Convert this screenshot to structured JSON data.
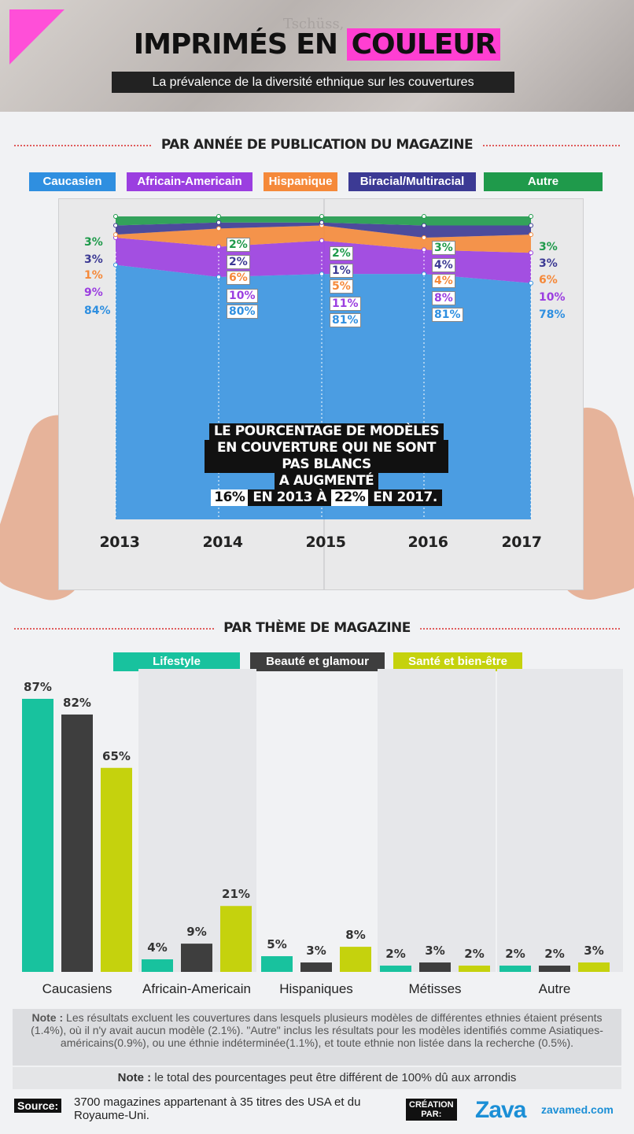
{
  "header": {
    "title_part1": "IMPRIMÉS EN",
    "title_part2": "COULEUR",
    "subtitle": "La prévalence de la diversité ethnique sur les couvertures",
    "background_text": "Tschüss,"
  },
  "section1": {
    "title": "PAR ANNÉE DE PUBLICATION DU MAGAZINE"
  },
  "section2": {
    "title": "PAR THÈME DE MAGAZINE"
  },
  "legend1": [
    {
      "label": "Caucasien",
      "color": "#2f8fe0"
    },
    {
      "label": "Africain-Americain",
      "color": "#9b3ee0"
    },
    {
      "label": "Hispanique",
      "color": "#f5893a"
    },
    {
      "label": "Biracial/Multiracial",
      "color": "#3c3a94"
    },
    {
      "label": "Autre",
      "color": "#1f9a4b"
    }
  ],
  "legend2": [
    {
      "label": "Lifestyle",
      "color": "#18c29e"
    },
    {
      "label": "Beauté et glamour",
      "color": "#3e3e3e"
    },
    {
      "label": "Santé et bien-être",
      "color": "#c5d20d"
    }
  ],
  "annotation": {
    "line1": "LE POURCENTAGE DE MODÈLES",
    "line2": "EN COUVERTURE QUI NE SONT PAS BLANCS",
    "line3": "A AUGMENTÉ",
    "hl1": "16%",
    "mid": "EN 2013 À",
    "hl2": "22%",
    "end": "EN 2017."
  },
  "chart_data": [
    {
      "type": "area",
      "title": "PAR ANNÉE DE PUBLICATION DU MAGAZINE",
      "x": [
        "2013",
        "2014",
        "2015",
        "2016",
        "2017"
      ],
      "stacked": true,
      "series": [
        {
          "name": "Caucasien",
          "values": [
            84,
            80,
            81,
            81,
            78
          ],
          "labels": [
            "84%",
            "80%",
            "81%",
            "81%",
            "78%"
          ],
          "color": "#2f8fe0"
        },
        {
          "name": "Africain-Americain",
          "values": [
            9,
            10,
            11,
            8,
            10
          ],
          "labels": [
            "9%",
            "10%",
            "11%",
            "8%",
            "10%"
          ],
          "color": "#9b3ee0"
        },
        {
          "name": "Hispanique",
          "values": [
            1,
            6,
            5,
            4,
            6
          ],
          "labels": [
            "1%",
            "6%",
            "5%",
            "4%",
            "6%"
          ],
          "color": "#f5893a"
        },
        {
          "name": "Biracial/Multiracial",
          "values": [
            3,
            2,
            1,
            4,
            3
          ],
          "labels": [
            "3%",
            "2%",
            "1%",
            "4%",
            "3%"
          ],
          "color": "#3c3a94"
        },
        {
          "name": "Autre",
          "values": [
            3,
            2,
            2,
            3,
            3
          ],
          "labels": [
            "3%",
            "2%",
            "2%",
            "3%",
            "3%"
          ],
          "color": "#1f9a4b"
        }
      ]
    },
    {
      "type": "bar",
      "title": "PAR THÈME DE MAGAZINE",
      "categories": [
        "Caucasiens",
        "Africain-Americain",
        "Hispaniques",
        "Métisses",
        "Autre"
      ],
      "ylim": [
        0,
        100
      ],
      "series": [
        {
          "name": "Lifestyle",
          "values": [
            87,
            4,
            5,
            2,
            2
          ],
          "labels": [
            "87%",
            "4%",
            "5%",
            "2%",
            "2%"
          ],
          "color": "#18c29e"
        },
        {
          "name": "Beauté et glamour",
          "values": [
            82,
            9,
            3,
            3,
            2
          ],
          "labels": [
            "82%",
            "9%",
            "3%",
            "3%",
            "2%"
          ],
          "color": "#3e3e3e"
        },
        {
          "name": "Santé et bien-être",
          "values": [
            65,
            21,
            8,
            2,
            3
          ],
          "labels": [
            "65%",
            "21%",
            "8%",
            "2%",
            "3%"
          ],
          "color": "#c5d20d"
        }
      ]
    }
  ],
  "footer": {
    "note1_label": "Note :",
    "note1_text": "Les résultats excluent les couvertures dans lesquels plusieurs modèles de différentes ethnies étaient présents (1.4%), où il n'y avait aucun modèle (2.1%). \"Autre\" inclus les résultats pour les modèles identifiés comme Asiatiques-américains(0.9%), ou une éthnie indéterminée(1.1%), et toute ethnie non listée dans la recherche (0.5%).",
    "note2_label": "Note :",
    "note2_text": "le total des pourcentages peut être différent de 100% dû aux arrondis",
    "source_label": "Source:",
    "source_text": "3700 magazines appartenant à 35 titres des USA et du Royaume-Uni.",
    "creation_line1": "CRÉATION",
    "creation_line2": "PAR:",
    "brand": "Zava",
    "brand_url": "zavamed.com"
  }
}
